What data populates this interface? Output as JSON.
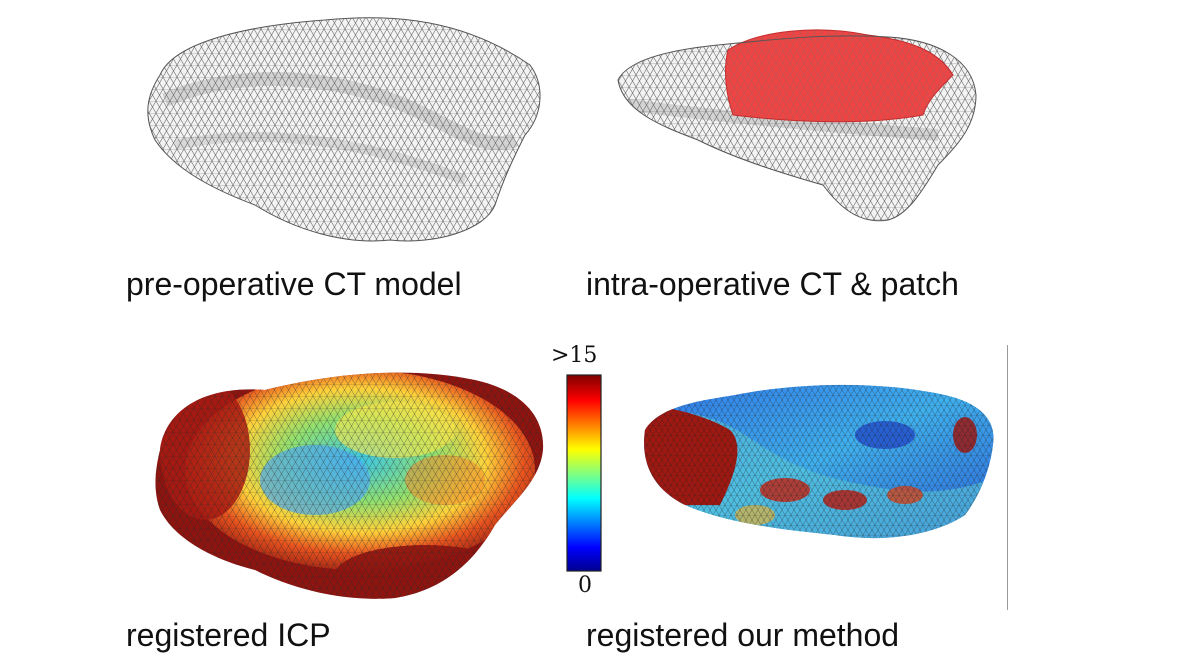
{
  "figure": {
    "panels": [
      {
        "id": "a",
        "caption": "pre-operative CT model",
        "rendering": "wireframe-mesh"
      },
      {
        "id": "b",
        "caption": "intra-operative CT & patch",
        "rendering": "wireframe-mesh-with-patch",
        "patch_color": "#ee4444"
      },
      {
        "id": "c",
        "caption": "registered ICP",
        "rendering": "error-colormap"
      },
      {
        "id": "d",
        "caption": "registered our method",
        "rendering": "error-colormap"
      }
    ],
    "colorbar": {
      "max_label": ">15",
      "min_label": "0",
      "colormap": "jet",
      "stops": [
        "#00008f",
        "#0000ff",
        "#00ffff",
        "#ffff00",
        "#ff0000",
        "#800000"
      ]
    },
    "mesh_colors": {
      "fill": "#f2f2f2",
      "edge": "#6a6a6a",
      "error_low": "#1e4fd6",
      "error_high": "#8e1410"
    }
  }
}
